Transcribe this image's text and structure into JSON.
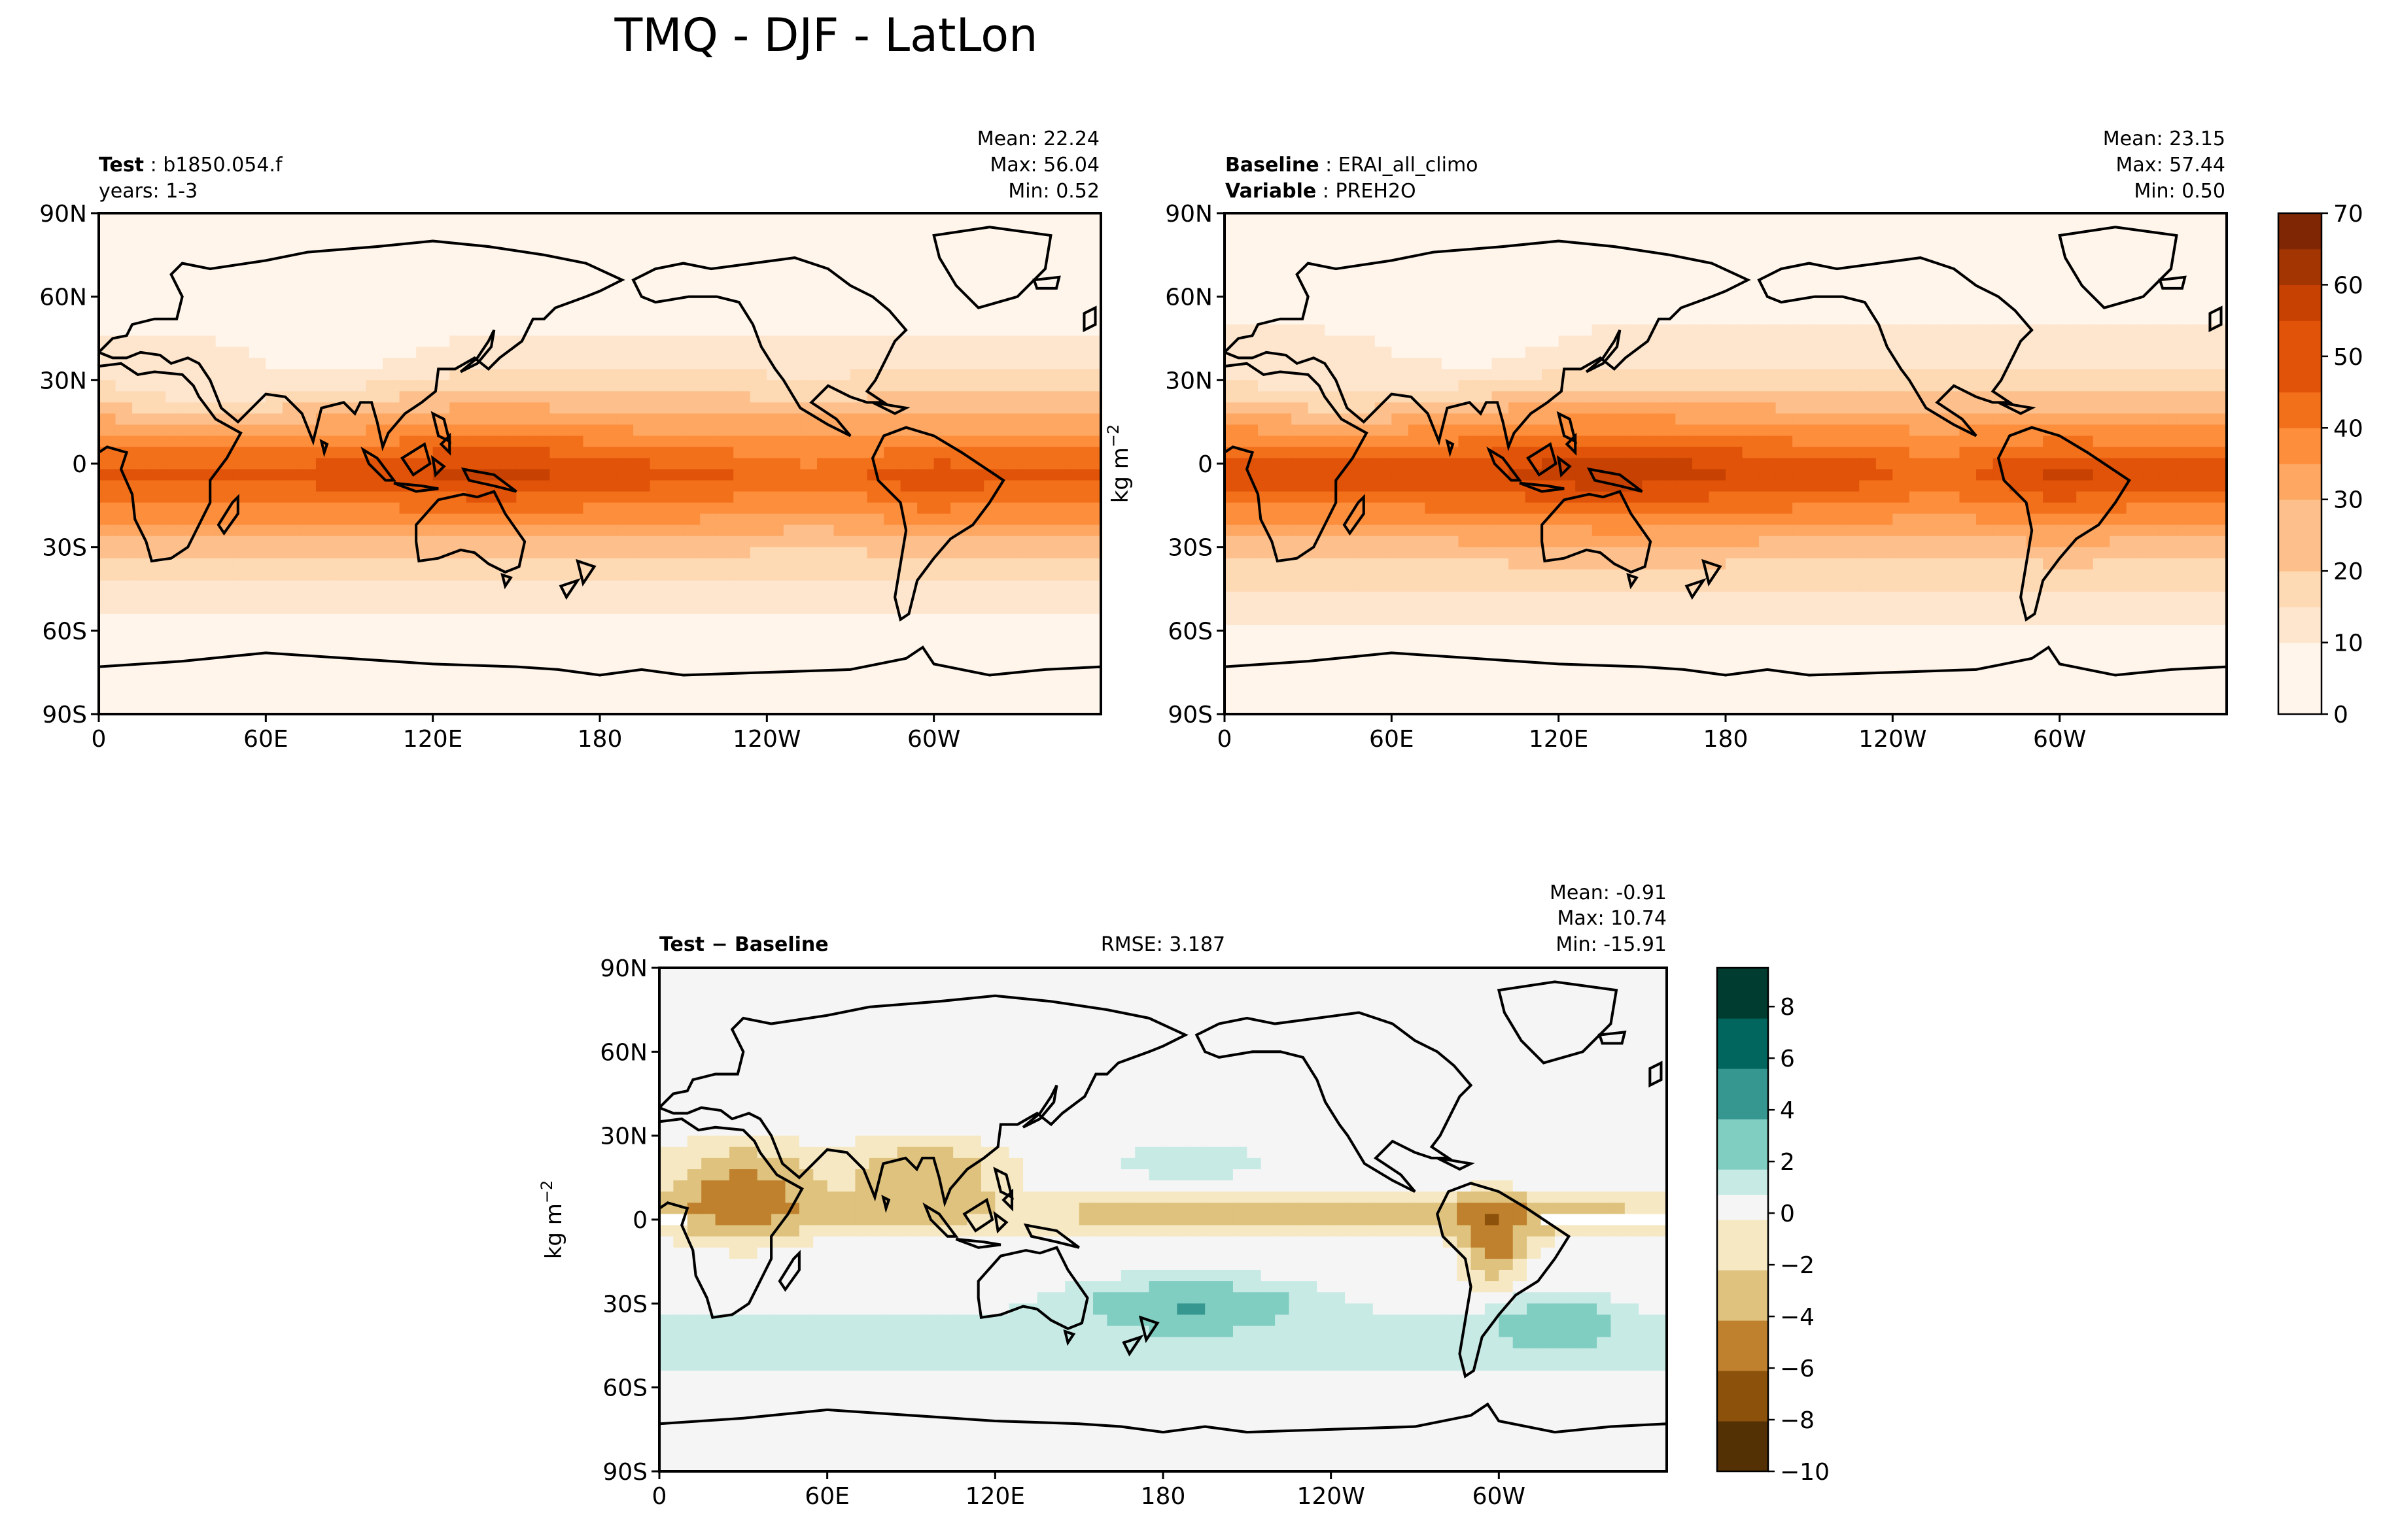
{
  "figure": {
    "title": "TMQ - DJF - LatLon"
  },
  "colors": {
    "test_base_cmap": [
      "#fff5eb",
      "#fee6ce",
      "#fdd9b4",
      "#fdc08c",
      "#fda762",
      "#fd8e3c",
      "#f3701b",
      "#e05308",
      "#c64102",
      "#a33503",
      "#7f2704"
    ],
    "diff_cmap_neg": [
      "#543005",
      "#8c510a",
      "#bf812d",
      "#dfc27d",
      "#f6e8c3"
    ],
    "diff_cmap_pos": [
      "#c7eae5",
      "#80cdc1",
      "#35978f",
      "#01665e",
      "#003c30"
    ],
    "diff_mid": "#f5f5f5",
    "coast": "#000000",
    "missing": "#ffffff"
  },
  "chart_data": [
    {
      "type": "heatmap",
      "panel": "test",
      "label_bold": "Test",
      "label_value": "b1850.054.f",
      "label_line2": "years: 1-3",
      "stats": {
        "mean": "Mean: 22.24",
        "max": "Max: 56.04",
        "min": "Min:  0.52"
      },
      "x_ticks": [
        "0",
        "60E",
        "120E",
        "180",
        "120W",
        "60W"
      ],
      "y_ticks": [
        "90N",
        "60N",
        "30N",
        "0",
        "30S",
        "60S",
        "90S"
      ],
      "xlim": [
        0,
        360
      ],
      "ylim": [
        -90,
        90
      ],
      "zonal_profile": {
        "lat": [
          -90,
          -75,
          -60,
          -50,
          -40,
          -30,
          -20,
          -10,
          -5,
          0,
          5,
          10,
          20,
          30,
          40,
          50,
          60,
          75,
          90
        ],
        "value": [
          1,
          2,
          5,
          9,
          15,
          22,
          33,
          43,
          48,
          45,
          40,
          34,
          24,
          15,
          10,
          6,
          4,
          2,
          1
        ]
      }
    },
    {
      "type": "heatmap",
      "panel": "baseline",
      "label_bold": "Baseline",
      "label_value": "ERAI_all_climo",
      "label2_bold": "Variable",
      "label2_value": "PREH2O",
      "stats": {
        "mean": "Mean: 23.15",
        "max": "Max: 57.44",
        "min": "Min:  0.50"
      },
      "ylabel": "kg m",
      "ylabel_sup": "−2",
      "x_ticks": [
        "0",
        "60E",
        "120E",
        "180",
        "120W",
        "60W"
      ],
      "y_ticks": [
        "90N",
        "60N",
        "30N",
        "0",
        "30S",
        "60S",
        "90S"
      ],
      "xlim": [
        0,
        360
      ],
      "ylim": [
        -90,
        90
      ],
      "zonal_profile": {
        "lat": [
          -90,
          -75,
          -60,
          -50,
          -40,
          -30,
          -20,
          -10,
          -5,
          0,
          5,
          10,
          20,
          30,
          40,
          50,
          60,
          75,
          90
        ],
        "value": [
          1,
          2,
          5,
          9,
          16,
          23,
          34,
          44,
          49,
          47,
          42,
          35,
          25,
          15,
          10,
          6,
          4,
          2,
          1
        ]
      },
      "colorbar": {
        "ticks": [
          "0",
          "10",
          "20",
          "30",
          "40",
          "50",
          "60",
          "70"
        ],
        "range": [
          0,
          70
        ]
      }
    },
    {
      "type": "heatmap",
      "panel": "difference",
      "label_bold": "Test − Baseline",
      "rmse": "RMSE: 3.187",
      "stats": {
        "mean": "Mean: -0.91",
        "max": "Max: 10.74",
        "min": "Min: -15.91"
      },
      "ylabel": "kg m",
      "ylabel_sup": "−2",
      "x_ticks": [
        "0",
        "60E",
        "120E",
        "180",
        "120W",
        "60W"
      ],
      "y_ticks": [
        "90N",
        "60N",
        "30N",
        "0",
        "30S",
        "60S",
        "90S"
      ],
      "xlim": [
        0,
        360
      ],
      "ylim": [
        -90,
        90
      ],
      "colorbar": {
        "ticks": [
          "8",
          "6",
          "4",
          "2",
          "0",
          "−2",
          "−4",
          "−6",
          "−8",
          "−10"
        ],
        "range": [
          -10,
          9.5
        ]
      }
    }
  ]
}
